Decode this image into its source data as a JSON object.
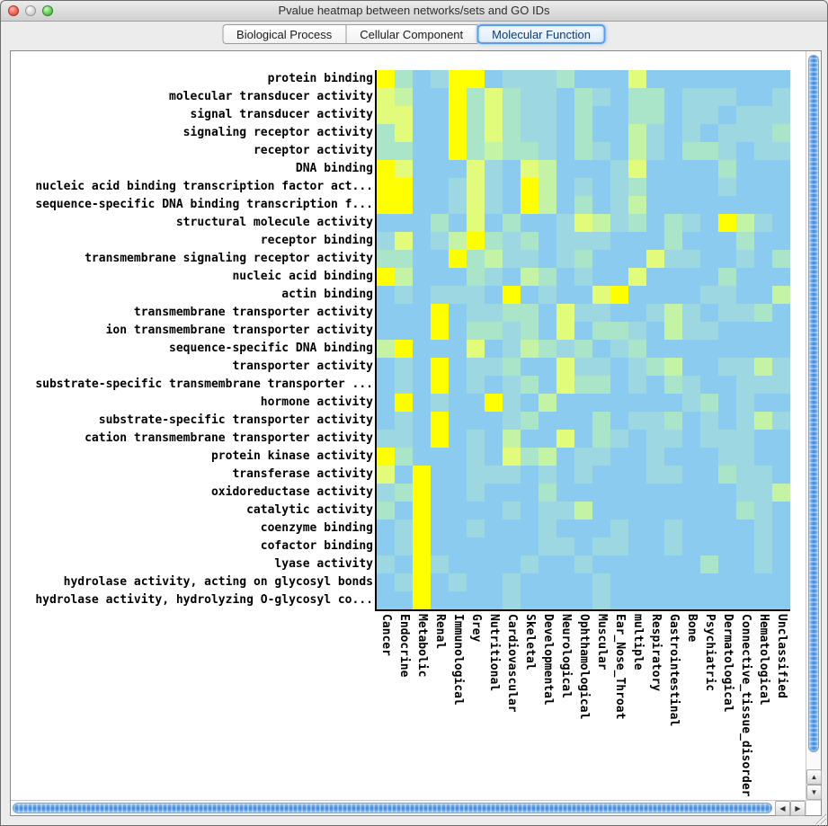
{
  "window": {
    "title": "Pvalue heatmap between networks/sets and GO IDs"
  },
  "tabs": [
    {
      "label": "Biological Process",
      "selected": false
    },
    {
      "label": "Cellular Component",
      "selected": false
    },
    {
      "label": "Molecular Function",
      "selected": true
    }
  ],
  "icons": {
    "scroll_up": "▲",
    "scroll_down": "▼",
    "scroll_left": "◀",
    "scroll_right": "▶"
  },
  "colors": {
    "selected_tab_ring": "#5E9CE5",
    "scrollbar_thumb": "#4A8FDD",
    "heatmap_low": "#8BCBF0",
    "heatmap_high": "#FFFF00"
  },
  "chart_data": {
    "type": "heatmap",
    "columns": [
      "Cancer",
      "Endocrine",
      "Metabolic",
      "Renal",
      "Immunological",
      "Grey",
      "Nutritional",
      "Cardiovascular",
      "Skeletal",
      "Developmental",
      "Neurological",
      "Ophthamological",
      "Muscular",
      "Ear_Nose_Throat",
      "multiple",
      "Respiratory",
      "Gastrointestinal",
      "Bone",
      "Psychiatric",
      "Dermatological",
      "Connective_tissue_disorder",
      "Hematological",
      "Unclassified"
    ],
    "rows": [
      "protein binding",
      "molecular transducer activity",
      "signal transducer activity",
      "signaling receptor activity",
      "receptor activity",
      "DNA binding",
      "nucleic acid binding transcription factor act...",
      "sequence-specific DNA binding transcription f...",
      "structural molecule activity",
      "receptor binding",
      "transmembrane signaling receptor activity",
      "nucleic acid binding",
      "actin binding",
      "transmembrane transporter activity",
      "ion transmembrane transporter activity",
      "sequence-specific DNA binding",
      "transporter activity",
      "substrate-specific transmembrane transporter ...",
      "hormone activity",
      "substrate-specific transporter activity",
      "cation transmembrane transporter activity",
      "protein kinase activity",
      "transferase activity",
      "oxidoreductase activity",
      "catalytic activity",
      "coenzyme binding",
      "cofactor binding",
      "lyase activity",
      "hydrolase activity, acting on glycosyl bonds",
      "hydrolase activity, hydrolyzing O-glycosyl co..."
    ],
    "palette": [
      "#8BCBF0",
      "#9CD7E2",
      "#ABE5C9",
      "#C5F3A6",
      "#E3FB7B",
      "#FFFF00"
    ],
    "values": [
      [
        5,
        2,
        0,
        1,
        5,
        5,
        0,
        1,
        1,
        1,
        2,
        0,
        0,
        0,
        4,
        0,
        0,
        0,
        0,
        0,
        0,
        0,
        0
      ],
      [
        4,
        3,
        0,
        0,
        5,
        2,
        4,
        2,
        1,
        1,
        0,
        2,
        1,
        0,
        2,
        2,
        0,
        1,
        1,
        1,
        0,
        0,
        1
      ],
      [
        4,
        4,
        0,
        0,
        5,
        2,
        4,
        2,
        1,
        1,
        0,
        2,
        0,
        0,
        2,
        2,
        0,
        1,
        1,
        0,
        1,
        1,
        1
      ],
      [
        2,
        4,
        0,
        0,
        5,
        2,
        4,
        2,
        1,
        1,
        0,
        2,
        0,
        0,
        3,
        1,
        0,
        1,
        0,
        1,
        1,
        1,
        2
      ],
      [
        2,
        2,
        0,
        0,
        5,
        2,
        3,
        2,
        2,
        1,
        0,
        2,
        1,
        0,
        3,
        1,
        0,
        2,
        2,
        1,
        0,
        1,
        1
      ],
      [
        5,
        4,
        0,
        0,
        0,
        4,
        1,
        0,
        4,
        3,
        0,
        0,
        0,
        1,
        4,
        0,
        0,
        0,
        0,
        2,
        0,
        0,
        0
      ],
      [
        5,
        5,
        0,
        0,
        1,
        4,
        1,
        0,
        5,
        3,
        0,
        1,
        0,
        1,
        2,
        0,
        0,
        0,
        0,
        1,
        0,
        0,
        0
      ],
      [
        5,
        5,
        0,
        0,
        1,
        4,
        1,
        0,
        5,
        3,
        0,
        2,
        0,
        1,
        3,
        0,
        0,
        0,
        0,
        0,
        0,
        0,
        0
      ],
      [
        0,
        0,
        0,
        2,
        0,
        4,
        0,
        2,
        0,
        0,
        1,
        4,
        3,
        1,
        2,
        0,
        2,
        1,
        0,
        5,
        3,
        1,
        0
      ],
      [
        1,
        4,
        0,
        1,
        3,
        5,
        2,
        1,
        2,
        0,
        1,
        1,
        1,
        0,
        0,
        0,
        2,
        0,
        0,
        0,
        2,
        0,
        0
      ],
      [
        2,
        2,
        0,
        0,
        5,
        2,
        3,
        1,
        1,
        0,
        1,
        2,
        0,
        0,
        0,
        4,
        1,
        1,
        0,
        0,
        1,
        0,
        2
      ],
      [
        5,
        3,
        0,
        0,
        0,
        2,
        1,
        0,
        3,
        2,
        0,
        1,
        0,
        0,
        4,
        0,
        0,
        0,
        0,
        2,
        0,
        0,
        0
      ],
      [
        0,
        1,
        0,
        1,
        1,
        1,
        0,
        5,
        0,
        1,
        0,
        0,
        4,
        5,
        0,
        0,
        0,
        0,
        1,
        1,
        0,
        0,
        3
      ],
      [
        0,
        0,
        0,
        5,
        0,
        1,
        1,
        2,
        2,
        0,
        4,
        1,
        1,
        0,
        0,
        1,
        3,
        1,
        0,
        1,
        1,
        2,
        0
      ],
      [
        0,
        0,
        0,
        5,
        0,
        2,
        2,
        1,
        2,
        0,
        4,
        0,
        2,
        2,
        1,
        0,
        3,
        1,
        1,
        0,
        0,
        0,
        0
      ],
      [
        3,
        5,
        0,
        0,
        0,
        4,
        0,
        1,
        3,
        2,
        1,
        2,
        0,
        1,
        2,
        0,
        0,
        0,
        0,
        0,
        0,
        0,
        0
      ],
      [
        0,
        1,
        0,
        5,
        0,
        1,
        1,
        2,
        0,
        0,
        4,
        1,
        1,
        0,
        1,
        2,
        3,
        0,
        0,
        1,
        1,
        3,
        1
      ],
      [
        0,
        1,
        0,
        5,
        0,
        1,
        0,
        1,
        2,
        0,
        4,
        2,
        2,
        0,
        1,
        0,
        2,
        1,
        0,
        0,
        1,
        1,
        1
      ],
      [
        0,
        5,
        0,
        1,
        0,
        0,
        5,
        1,
        0,
        3,
        0,
        0,
        0,
        0,
        0,
        0,
        0,
        1,
        2,
        0,
        1,
        0,
        0
      ],
      [
        0,
        1,
        0,
        5,
        0,
        0,
        0,
        1,
        2,
        0,
        0,
        0,
        2,
        0,
        1,
        1,
        2,
        0,
        1,
        0,
        1,
        3,
        1
      ],
      [
        1,
        1,
        0,
        5,
        0,
        1,
        0,
        3,
        0,
        0,
        4,
        0,
        2,
        1,
        0,
        1,
        1,
        0,
        1,
        1,
        1,
        0,
        0
      ],
      [
        5,
        2,
        0,
        0,
        0,
        1,
        0,
        4,
        2,
        3,
        0,
        1,
        1,
        0,
        0,
        1,
        0,
        0,
        0,
        1,
        1,
        0,
        0
      ],
      [
        4,
        0,
        5,
        0,
        0,
        1,
        1,
        1,
        0,
        1,
        0,
        1,
        0,
        0,
        0,
        1,
        1,
        0,
        0,
        2,
        1,
        1,
        0
      ],
      [
        1,
        2,
        5,
        0,
        0,
        1,
        0,
        0,
        0,
        2,
        0,
        0,
        0,
        0,
        0,
        0,
        0,
        0,
        0,
        0,
        1,
        1,
        3
      ],
      [
        2,
        0,
        5,
        0,
        0,
        0,
        0,
        1,
        0,
        1,
        1,
        3,
        0,
        0,
        0,
        0,
        0,
        0,
        0,
        0,
        2,
        1,
        0
      ],
      [
        0,
        1,
        5,
        0,
        0,
        1,
        0,
        0,
        0,
        1,
        0,
        0,
        0,
        1,
        0,
        0,
        1,
        0,
        0,
        0,
        0,
        1,
        0
      ],
      [
        0,
        1,
        5,
        0,
        0,
        0,
        0,
        0,
        0,
        1,
        1,
        0,
        1,
        1,
        0,
        0,
        1,
        0,
        0,
        0,
        0,
        1,
        0
      ],
      [
        1,
        0,
        5,
        1,
        0,
        0,
        0,
        0,
        1,
        0,
        0,
        1,
        0,
        0,
        0,
        0,
        0,
        0,
        2,
        0,
        0,
        1,
        0
      ],
      [
        0,
        1,
        5,
        0,
        1,
        0,
        0,
        1,
        0,
        0,
        0,
        0,
        1,
        0,
        0,
        0,
        0,
        0,
        0,
        0,
        0,
        0,
        0
      ],
      [
        0,
        0,
        5,
        0,
        0,
        0,
        0,
        1,
        0,
        0,
        0,
        0,
        1,
        0,
        0,
        0,
        0,
        0,
        0,
        0,
        0,
        0,
        0
      ]
    ]
  }
}
